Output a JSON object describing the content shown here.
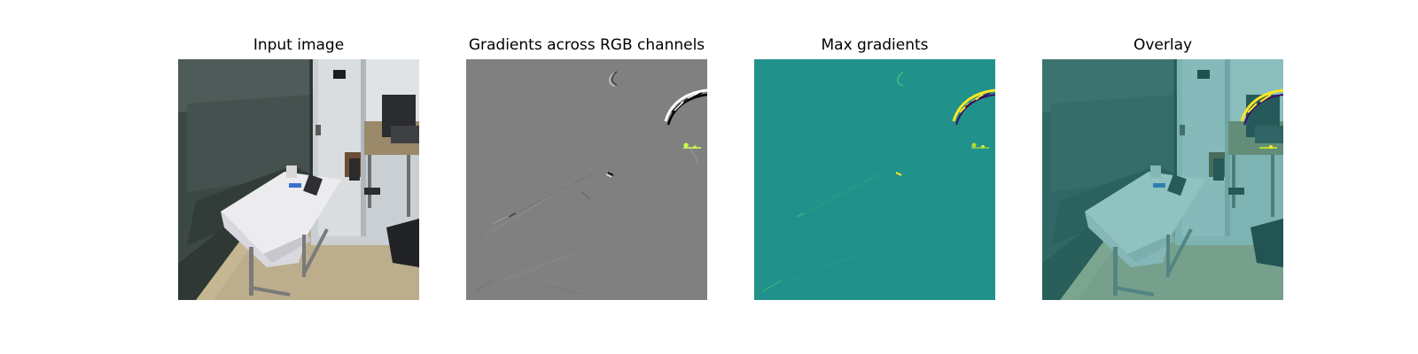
{
  "figure": {
    "panels": [
      {
        "title": "Input image",
        "kind": "photo"
      },
      {
        "title": "Gradients across RGB channels",
        "kind": "gradient-rgb"
      },
      {
        "title": "Max gradients",
        "kind": "gradient-max"
      },
      {
        "title": "Overlay",
        "kind": "overlay"
      }
    ]
  },
  "colors": {
    "gradient_background": "#808080",
    "max_gradient_background": "#21918c",
    "max_gradient_highlight": "#fde725",
    "overlay_tint": "#21918c"
  }
}
